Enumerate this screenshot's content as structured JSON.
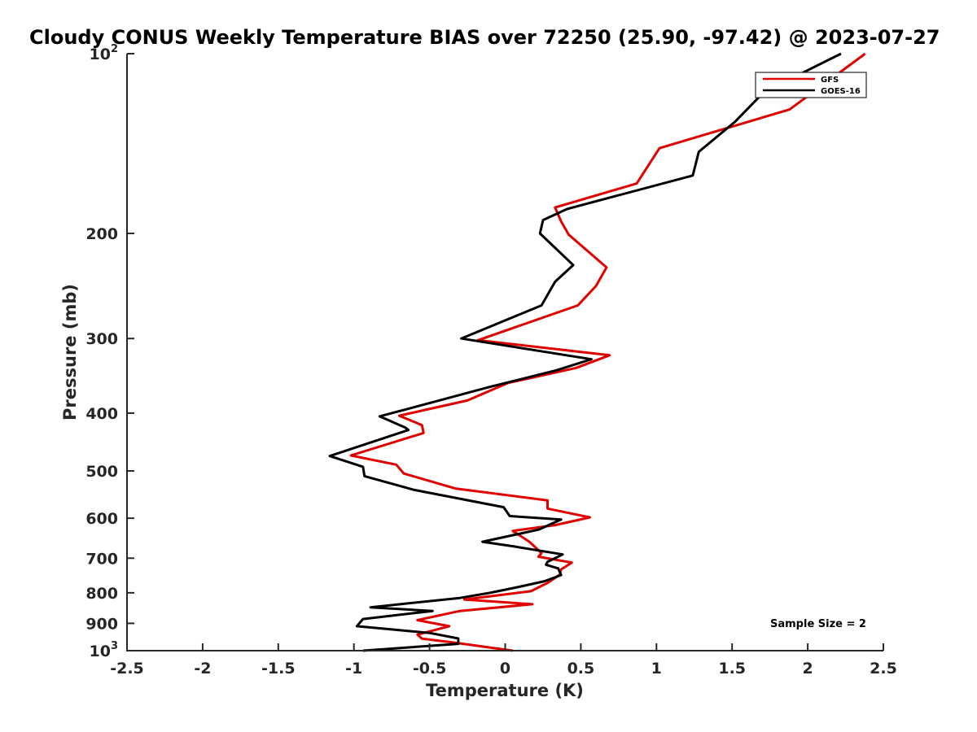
{
  "chart_data": {
    "type": "line",
    "title": "Cloudy CONUS Weekly Temperature BIAS over 72250 (25.90, -97.42) @ 2023-07-27",
    "xlabel": "Temperature (K)",
    "ylabel": "Pressure (mb)",
    "xlim": [
      -2.5,
      2.5
    ],
    "ylim": [
      1000,
      100
    ],
    "yscale": "log",
    "y_reversed": true,
    "grid": false,
    "legend_placement": "top-right",
    "x_ticks": [
      "-2.5",
      "-2",
      "-1.5",
      "-1",
      "-0.5",
      "0",
      "0.5",
      "1",
      "1.5",
      "2",
      "2.5"
    ],
    "x_tick_values": [
      -2.5,
      -2,
      -1.5,
      -1,
      -0.5,
      0,
      0.5,
      1,
      1.5,
      2,
      2.5
    ],
    "y_ticks": [
      {
        "value": 100,
        "base": "10",
        "exp": "2"
      },
      {
        "value": 200,
        "label": "200"
      },
      {
        "value": 300,
        "label": "300"
      },
      {
        "value": 400,
        "label": "400"
      },
      {
        "value": 500,
        "label": "500"
      },
      {
        "value": 600,
        "label": "600"
      },
      {
        "value": 700,
        "label": "700"
      },
      {
        "value": 800,
        "label": "800"
      },
      {
        "value": 900,
        "label": "900"
      },
      {
        "value": 1000,
        "base": "10",
        "exp": "3"
      }
    ],
    "annotation": "Sample Size = 2",
    "series": [
      {
        "name": "GFS",
        "color": "#e00000",
        "x": [
          2.38,
          1.88,
          1.02,
          0.87,
          0.33,
          0.37,
          0.42,
          0.67,
          0.6,
          0.48,
          -0.18,
          0.69,
          0.47,
          0.02,
          -0.25,
          -0.7,
          -0.55,
          -0.54,
          -1.02,
          -0.72,
          -0.67,
          -0.33,
          0.28,
          0.28,
          0.56,
          0.33,
          0.05,
          0.16,
          0.24,
          0.22,
          0.44,
          0.37,
          0.36,
          0.28,
          0.17,
          -0.27,
          0.18,
          -0.3,
          -0.58,
          -0.37,
          -0.58,
          -0.55,
          -0.34,
          0.05
        ],
        "y": [
          100,
          124,
          144,
          165,
          181,
          191,
          201,
          228,
          245,
          264,
          302,
          320,
          336,
          356,
          381,
          404,
          419,
          432,
          471,
          488,
          505,
          535,
          560,
          578,
          598,
          616,
          630,
          657,
          686,
          696,
          712,
          731,
          746,
          770,
          795,
          821,
          836,
          858,
          889,
          910,
          940,
          955,
          969,
          1000
        ]
      },
      {
        "name": "GOES-16",
        "color": "#000000",
        "x": [
          2.22,
          1.71,
          1.52,
          1.28,
          1.24,
          0.41,
          0.25,
          0.23,
          0.45,
          0.33,
          0.24,
          -0.29,
          0.57,
          0.34,
          -0.11,
          -0.42,
          -0.83,
          -0.66,
          -0.64,
          -1.16,
          -0.94,
          -0.93,
          -0.6,
          -0.01,
          0.03,
          0.37,
          0.22,
          -0.15,
          0.06,
          0.38,
          0.28,
          0.27,
          0.35,
          0.37,
          0.26,
          0.07,
          -0.1,
          -0.3,
          -0.89,
          -0.48,
          -0.94,
          -0.98,
          -0.5,
          -0.31,
          -0.31,
          -0.94
        ],
        "y": [
          100,
          116,
          130,
          146,
          160,
          182,
          190,
          200,
          226,
          241,
          264,
          300,
          325,
          339,
          362,
          380,
          405,
          423,
          427,
          472,
          492,
          510,
          538,
          575,
          595,
          603,
          627,
          657,
          669,
          690,
          710,
          718,
          728,
          747,
          765,
          784,
          800,
          816,
          846,
          858,
          885,
          910,
          934,
          954,
          974,
          1000
        ]
      }
    ]
  }
}
